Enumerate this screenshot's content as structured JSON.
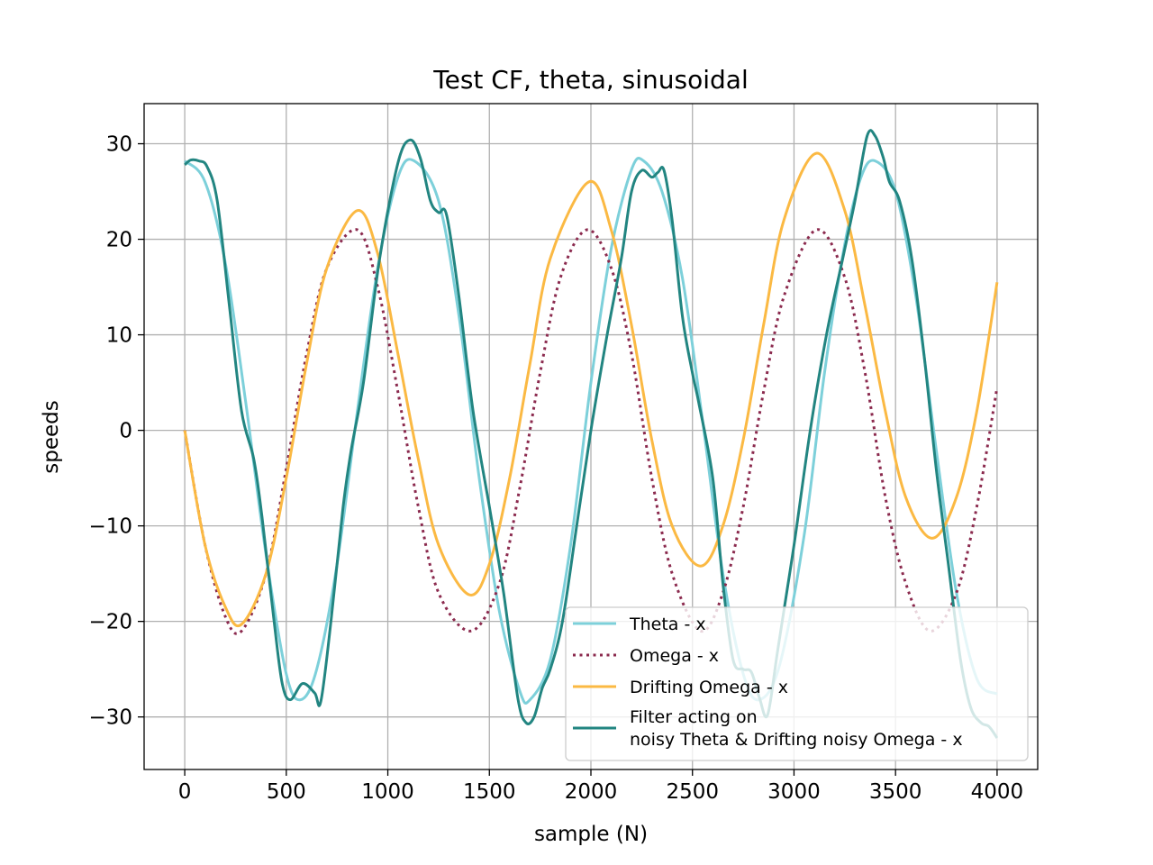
{
  "chart_data": {
    "type": "line",
    "title": "Test CF, theta, sinusoidal",
    "xlabel": "sample (N)",
    "ylabel": "speeds",
    "xlim": [
      -200,
      4200
    ],
    "ylim": [
      -35.5,
      34.2
    ],
    "xticks": [
      0,
      500,
      1000,
      1500,
      2000,
      2500,
      3000,
      3500,
      4000
    ],
    "yticks": [
      -30,
      -20,
      -10,
      0,
      10,
      20,
      30
    ],
    "grid": true,
    "legend_position": "lower-right",
    "series": [
      {
        "name": "Theta  - x",
        "color": "#7dd0da",
        "style": "solid",
        "points": [
          [
            0,
            28.2
          ],
          [
            100,
            26
          ],
          [
            200,
            17.5
          ],
          [
            300,
            3
          ],
          [
            400,
            -13
          ],
          [
            500,
            -25.5
          ],
          [
            570,
            -28.2
          ],
          [
            650,
            -25
          ],
          [
            750,
            -14
          ],
          [
            850,
            2
          ],
          [
            950,
            17
          ],
          [
            1050,
            26.5
          ],
          [
            1130,
            28.2
          ],
          [
            1250,
            24
          ],
          [
            1350,
            12
          ],
          [
            1450,
            -5
          ],
          [
            1550,
            -19
          ],
          [
            1650,
            -27.3
          ],
          [
            1700,
            -28.2
          ],
          [
            1800,
            -24
          ],
          [
            1900,
            -12
          ],
          [
            2000,
            5
          ],
          [
            2100,
            19
          ],
          [
            2200,
            27.3
          ],
          [
            2260,
            28.2
          ],
          [
            2350,
            25
          ],
          [
            2450,
            16
          ],
          [
            2550,
            1
          ],
          [
            2650,
            -15
          ],
          [
            2750,
            -25.5
          ],
          [
            2830,
            -28.2
          ],
          [
            2930,
            -24.5
          ],
          [
            3050,
            -11
          ],
          [
            3150,
            6
          ],
          [
            3250,
            19.5
          ],
          [
            3330,
            26.5
          ],
          [
            3400,
            28.2
          ],
          [
            3500,
            25
          ],
          [
            3600,
            14
          ],
          [
            3700,
            -2
          ],
          [
            3800,
            -17
          ],
          [
            3900,
            -26
          ],
          [
            4000,
            -27.6
          ]
        ]
      },
      {
        "name": "Omega - x",
        "color": "#8b2a4e",
        "style": "dotted",
        "points": [
          [
            0,
            0
          ],
          [
            100,
            -12
          ],
          [
            200,
            -19.5
          ],
          [
            280,
            -21
          ],
          [
            400,
            -15
          ],
          [
            500,
            -4
          ],
          [
            600,
            8
          ],
          [
            700,
            17
          ],
          [
            850,
            21
          ],
          [
            950,
            15
          ],
          [
            1050,
            4
          ],
          [
            1150,
            -8
          ],
          [
            1250,
            -17
          ],
          [
            1410,
            -21
          ],
          [
            1550,
            -16
          ],
          [
            1650,
            -6
          ],
          [
            1750,
            6
          ],
          [
            1850,
            16
          ],
          [
            1980,
            21
          ],
          [
            2100,
            17
          ],
          [
            2200,
            8
          ],
          [
            2300,
            -5
          ],
          [
            2400,
            -15
          ],
          [
            2540,
            -21
          ],
          [
            2650,
            -17
          ],
          [
            2750,
            -8
          ],
          [
            2850,
            4
          ],
          [
            2950,
            14
          ],
          [
            3110,
            21
          ],
          [
            3250,
            16
          ],
          [
            3350,
            6
          ],
          [
            3450,
            -7
          ],
          [
            3550,
            -16
          ],
          [
            3670,
            -21
          ],
          [
            3800,
            -17
          ],
          [
            3900,
            -8
          ],
          [
            4000,
            4.5
          ]
        ]
      },
      {
        "name": "Drifting Omega - x",
        "color": "#fbb943",
        "style": "solid",
        "points": [
          [
            0,
            0
          ],
          [
            100,
            -12
          ],
          [
            200,
            -18.5
          ],
          [
            280,
            -20.3
          ],
          [
            400,
            -15
          ],
          [
            500,
            -5
          ],
          [
            600,
            7
          ],
          [
            700,
            17
          ],
          [
            850,
            23
          ],
          [
            950,
            18.5
          ],
          [
            1050,
            8
          ],
          [
            1150,
            -3
          ],
          [
            1250,
            -12
          ],
          [
            1400,
            -17.2
          ],
          [
            1500,
            -14
          ],
          [
            1600,
            -5
          ],
          [
            1700,
            7
          ],
          [
            1800,
            18
          ],
          [
            1990,
            26
          ],
          [
            2100,
            21
          ],
          [
            2200,
            11
          ],
          [
            2300,
            -1
          ],
          [
            2400,
            -10
          ],
          [
            2540,
            -14.2
          ],
          [
            2650,
            -10
          ],
          [
            2750,
            -1
          ],
          [
            2850,
            11
          ],
          [
            2950,
            22
          ],
          [
            3110,
            29
          ],
          [
            3250,
            23
          ],
          [
            3350,
            13
          ],
          [
            3450,
            2
          ],
          [
            3550,
            -7
          ],
          [
            3680,
            -11.3
          ],
          [
            3800,
            -7
          ],
          [
            3900,
            2
          ],
          [
            4000,
            15.5
          ]
        ]
      },
      {
        "name": "Filter acting on\nnoisy Theta & Drifting noisy Omega - x",
        "color": "#228581",
        "style": "solid",
        "points": [
          [
            0,
            27.8
          ],
          [
            30,
            28.3
          ],
          [
            70,
            28.2
          ],
          [
            110,
            27.6
          ],
          [
            160,
            24
          ],
          [
            220,
            13
          ],
          [
            280,
            2
          ],
          [
            340,
            -3
          ],
          [
            380,
            -9
          ],
          [
            440,
            -20
          ],
          [
            480,
            -26.5
          ],
          [
            520,
            -28.2
          ],
          [
            580,
            -26.5
          ],
          [
            640,
            -27.5
          ],
          [
            670,
            -28.4
          ],
          [
            720,
            -20
          ],
          [
            780,
            -8
          ],
          [
            820,
            -2
          ],
          [
            880,
            5
          ],
          [
            960,
            18
          ],
          [
            1050,
            28
          ],
          [
            1110,
            30.4
          ],
          [
            1160,
            28.5
          ],
          [
            1210,
            24
          ],
          [
            1250,
            22.8
          ],
          [
            1290,
            22.5
          ],
          [
            1350,
            14
          ],
          [
            1420,
            2
          ],
          [
            1500,
            -8
          ],
          [
            1570,
            -17
          ],
          [
            1640,
            -28
          ],
          [
            1680,
            -30.6
          ],
          [
            1720,
            -30
          ],
          [
            1760,
            -27
          ],
          [
            1800,
            -25
          ],
          [
            1860,
            -20
          ],
          [
            1930,
            -10
          ],
          [
            2000,
            0
          ],
          [
            2080,
            10
          ],
          [
            2150,
            18
          ],
          [
            2200,
            25
          ],
          [
            2250,
            27.2
          ],
          [
            2300,
            26.5
          ],
          [
            2330,
            27
          ],
          [
            2360,
            27.2
          ],
          [
            2400,
            22
          ],
          [
            2450,
            12
          ],
          [
            2500,
            6
          ],
          [
            2530,
            3
          ],
          [
            2600,
            -5
          ],
          [
            2650,
            -16
          ],
          [
            2700,
            -24
          ],
          [
            2750,
            -25
          ],
          [
            2790,
            -25.3
          ],
          [
            2830,
            -28
          ],
          [
            2870,
            -29.8
          ],
          [
            2920,
            -23
          ],
          [
            3000,
            -12
          ],
          [
            3080,
            0
          ],
          [
            3160,
            10
          ],
          [
            3240,
            18
          ],
          [
            3300,
            24
          ],
          [
            3360,
            30.8
          ],
          [
            3400,
            30.8
          ],
          [
            3440,
            28.5
          ],
          [
            3470,
            26
          ],
          [
            3520,
            24
          ],
          [
            3580,
            18
          ],
          [
            3640,
            8
          ],
          [
            3700,
            -4
          ],
          [
            3760,
            -14
          ],
          [
            3820,
            -24
          ],
          [
            3870,
            -29
          ],
          [
            3920,
            -30.6
          ],
          [
            3960,
            -31
          ],
          [
            4000,
            -32.2
          ]
        ]
      }
    ]
  }
}
